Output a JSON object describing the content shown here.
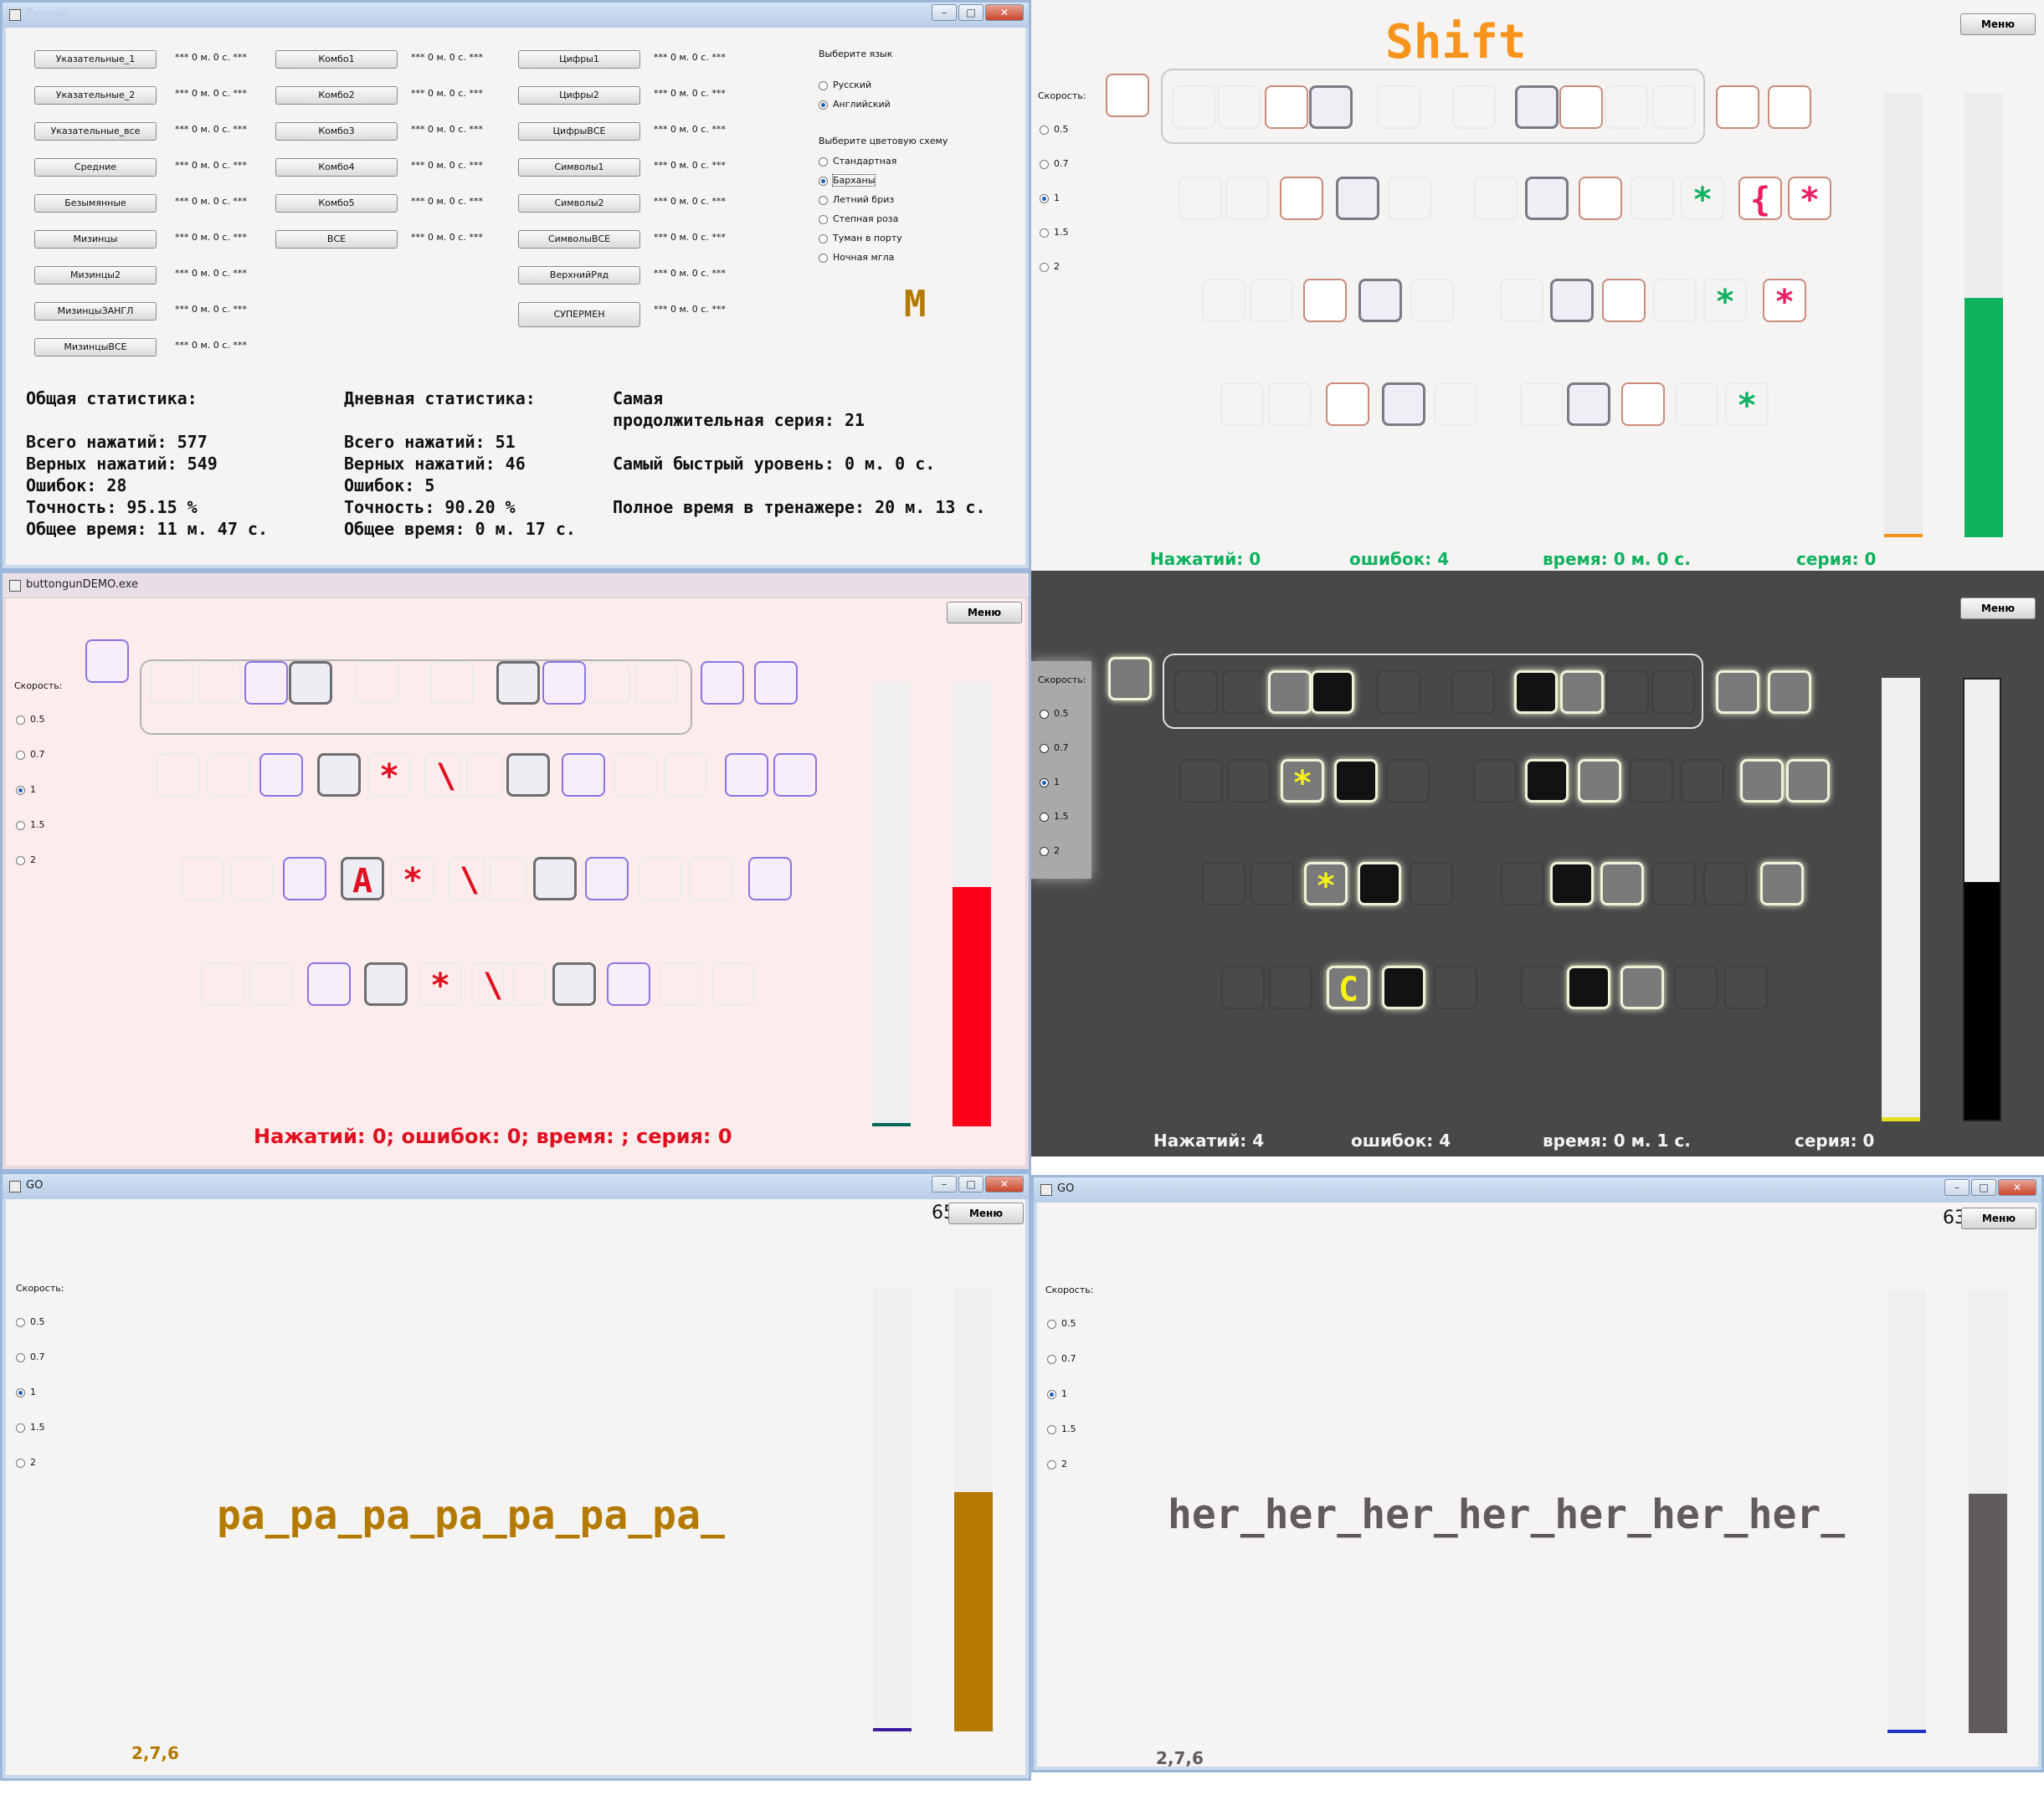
{
  "panel1": {
    "title": "Ручные",
    "col1": [
      "Указательные_1",
      "Указательные_2",
      "Указательные_все",
      "Средние",
      "Безымянные",
      "Мизинцы",
      "Мизинцы2",
      "МизинцыЗАНГЛ",
      "МизинцыВСЕ"
    ],
    "col2": [
      "Комбо1",
      "Комбо2",
      "Комбо3",
      "Комбо4",
      "Комбо5",
      "ВСЕ"
    ],
    "col3": [
      "Цифры1",
      "Цифры2",
      "ЦифрыВСЕ",
      "Символы1",
      "Символы2",
      "СимволыВСЕ",
      "ВерхнийРяд",
      "СУПЕРМЕН"
    ],
    "time_label": "*** 0 м. 0 с. ***",
    "lang_title": "Выберите язык",
    "langs": [
      "Русский",
      "Английский"
    ],
    "scheme_title": "Выберите цветовую схему",
    "schemes": [
      "Стандартная",
      "Барханы",
      "Летний бриз",
      "Степная роза",
      "Туман в порту",
      "Ночная мгла"
    ],
    "big_letter": "M",
    "stats_total": "Общая статистика:\n\nВсего нажатий: 577\nВерных нажатий: 549\nОшибок: 28\nТочность: 95.15 %\nОбщее время: 11 м. 47 с.",
    "stats_day": "Дневная статистика:\n\nВсего нажатий: 51\nВерных нажатий: 46\nОшибок: 5\nТочность: 90.20 %\nОбщее время: 0 м. 17 с.",
    "stats_record": "Самая\nпродолжительная серия: 21\n\nСамый быстрый уровень: 0 м. 0 с.\n\nПолное время в тренажере: 20 м. 13 с."
  },
  "common": {
    "menu": "Меню",
    "speed_title": "Скорость:",
    "speeds": [
      "0.5",
      "0.7",
      "1",
      "1.5",
      "2"
    ]
  },
  "panel2": {
    "shift": "Shift",
    "sym_green": "*",
    "sym_brace": "{",
    "sym_star_red": "*",
    "presses": "Нажатий: 0",
    "errors": "ошибок: 4",
    "time": "время: 0 м. 0 с.",
    "series": "серия: 0",
    "accent": "#f7941d",
    "bar_fill_pct": 54,
    "bar_color": "#0fb15f"
  },
  "panel3": {
    "title": "buttongunDEMO.exe",
    "sym_star": "*",
    "sym_slash": "\\",
    "sym_a": "A",
    "footer": "Нажатий: 0; ошибок: 0; время: ; серия: 0",
    "bar_fill_pct": 54,
    "bar_color": "#ff0019"
  },
  "panel4": {
    "sym_star": "*",
    "sym_c": "C",
    "presses": "Нажатий: 4",
    "errors": "ошибок: 4",
    "time": "время: 0 м. 1 с.",
    "series": "серия: 0",
    "bar_fill_pct": 54,
    "bar_color": "#000000"
  },
  "panel5": {
    "title": "GO",
    "count": "658",
    "text": "pa_pa_pa_pa_pa_pa_pa_",
    "code": "2,7,6",
    "color": "#b47a00",
    "bar_fill_pct": 54
  },
  "panel6": {
    "title": "GO",
    "count": "632",
    "text": "her_her_her_her_her_her_her_",
    "code": "2,7,6",
    "color": "#615b5b",
    "bar_fill_pct": 54
  }
}
